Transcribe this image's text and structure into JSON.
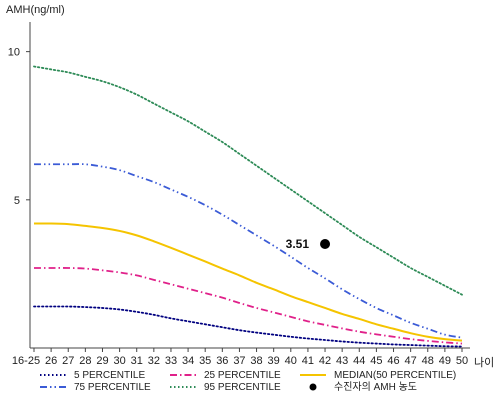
{
  "chart_data": {
    "type": "line",
    "ylabel": "AMH(ng/ml)",
    "xlabel": "나이",
    "y_ticks": [
      5,
      10
    ],
    "ylim": [
      0,
      11
    ],
    "categories": [
      "16-25",
      "26",
      "27",
      "28",
      "29",
      "30",
      "31",
      "32",
      "33",
      "34",
      "35",
      "36",
      "37",
      "38",
      "39",
      "40",
      "41",
      "42",
      "43",
      "44",
      "45",
      "46",
      "47",
      "48",
      "49",
      "50"
    ],
    "grid": false,
    "series": [
      {
        "name": "5 PERCENTILE",
        "color": "#000080",
        "style": "dotted",
        "values": [
          1.4,
          1.4,
          1.4,
          1.38,
          1.35,
          1.3,
          1.22,
          1.12,
          1.0,
          0.9,
          0.8,
          0.7,
          0.6,
          0.52,
          0.45,
          0.38,
          0.32,
          0.27,
          0.22,
          0.18,
          0.15,
          0.12,
          0.1,
          0.08,
          0.06,
          0.05
        ]
      },
      {
        "name": "25 PERCENTILE",
        "color": "#e0218a",
        "style": "dashdot",
        "values": [
          2.7,
          2.7,
          2.7,
          2.68,
          2.62,
          2.55,
          2.45,
          2.3,
          2.15,
          2.0,
          1.85,
          1.7,
          1.52,
          1.35,
          1.2,
          1.05,
          0.9,
          0.78,
          0.66,
          0.55,
          0.46,
          0.38,
          0.3,
          0.24,
          0.19,
          0.15
        ]
      },
      {
        "name": "MEDIAN(50 PERCENTILE)",
        "color": "#f5c400",
        "style": "solid",
        "values": [
          4.2,
          4.2,
          4.18,
          4.12,
          4.05,
          3.95,
          3.8,
          3.6,
          3.38,
          3.15,
          2.92,
          2.68,
          2.45,
          2.2,
          1.98,
          1.75,
          1.55,
          1.35,
          1.15,
          0.98,
          0.8,
          0.65,
          0.5,
          0.38,
          0.3,
          0.25
        ]
      },
      {
        "name": "75 PERCENTILE",
        "color": "#3b5bd6",
        "style": "dashdotdot",
        "values": [
          6.2,
          6.2,
          6.2,
          6.2,
          6.12,
          6.0,
          5.8,
          5.6,
          5.35,
          5.1,
          4.82,
          4.5,
          4.15,
          3.8,
          3.45,
          3.08,
          2.7,
          2.35,
          1.98,
          1.65,
          1.35,
          1.1,
          0.85,
          0.65,
          0.45,
          0.35
        ]
      },
      {
        "name": "95 PERCENTILE",
        "color": "#2e8b57",
        "style": "dotted",
        "values": [
          9.5,
          9.4,
          9.3,
          9.15,
          9.0,
          8.8,
          8.55,
          8.25,
          7.95,
          7.65,
          7.3,
          6.95,
          6.55,
          6.15,
          5.75,
          5.35,
          4.95,
          4.55,
          4.15,
          3.75,
          3.4,
          3.05,
          2.7,
          2.4,
          2.1,
          1.8
        ]
      }
    ],
    "marker": {
      "name": "수진자의 AMH 농도",
      "x_category": "42",
      "y": 3.51,
      "label": "3.51",
      "color": "#000000"
    },
    "legend_position": "bottom"
  }
}
